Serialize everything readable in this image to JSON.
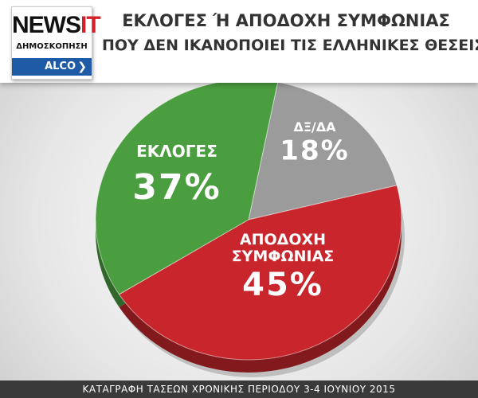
{
  "logo": {
    "brand": "NEWS",
    "brand_accent": "IT",
    "subtitle": "ΔΗΜΟΣΚΟΠΗΣΗ",
    "partner": "ALCO"
  },
  "chart_data": {
    "type": "pie",
    "title": "ΕΚΛΟΓΕΣ Ή ΑΠΟΔΟΧΗ ΣΥΜΦΩΝΙΑΣ",
    "subtitle": "ΠΟΥ ΔΕΝ ΙΚΑΝΟΠΟΙΕΙ ΤΙΣ ΕΛΛΗΝΙΚΕΣ ΘΕΣΕΙΣ",
    "categories": [
      "ΔΞ/ΔΑ",
      "ΑΠΟΔΟΧΗ ΣΥΜΦΩΝΙΑΣ",
      "ΕΚΛΟΓΕΣ"
    ],
    "values": [
      18,
      45,
      37
    ],
    "value_labels": [
      "18%",
      "45%",
      "37%"
    ],
    "colors": [
      "#9b9b9b",
      "#c8262c",
      "#4b9e40"
    ]
  },
  "footer": "ΚΑΤΑΓΡΑΦΗ ΤΑΣΕΩΝ ΧΡΟΝΙΚΗΣ ΠΕΡΙΟΔΟΥ 3-4 ΙΟΥΝΙΟΥ 2015"
}
